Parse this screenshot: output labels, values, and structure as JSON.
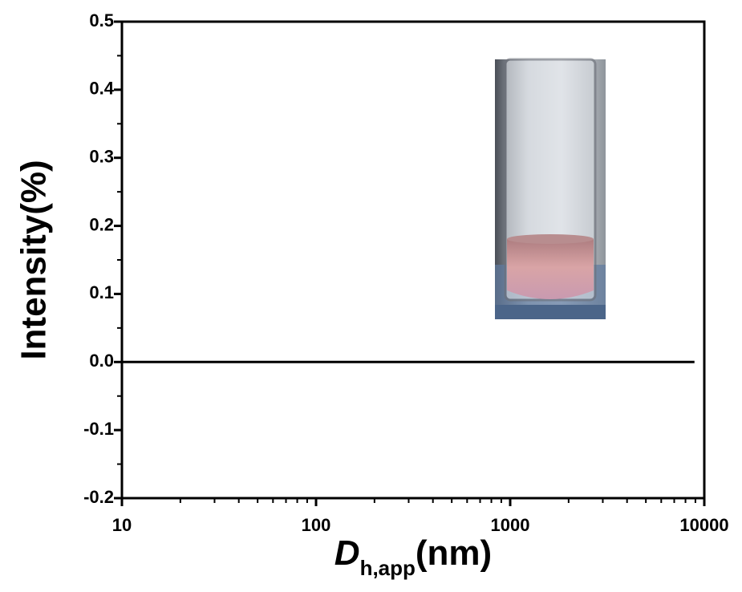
{
  "chart_data": {
    "type": "line",
    "ylabel": "Intensity(%)",
    "xlabel": {
      "symbol": "D",
      "subscript": "h,app",
      "unit": "(nm)"
    },
    "x": [
      10,
      8900
    ],
    "series": [
      {
        "color": "#000000",
        "values": [
          0,
          0
        ]
      }
    ],
    "xscale": "log",
    "xlim": [
      10,
      10000
    ],
    "xticks": [
      10,
      100,
      1000,
      10000
    ],
    "xminorticks": [
      20,
      30,
      40,
      50,
      60,
      70,
      80,
      90,
      200,
      300,
      400,
      500,
      600,
      700,
      800,
      900,
      2000,
      3000,
      4000,
      5000,
      6000,
      7000,
      8000,
      9000
    ],
    "ylim": [
      -0.2,
      0.5
    ],
    "yticks": [
      -0.2,
      -0.1,
      {
        "value": 0,
        "label": "0.0"
      },
      0.1,
      0.2,
      0.3,
      0.4,
      0.5
    ],
    "yminorticks": [
      -0.15,
      -0.05,
      0.05,
      0.15,
      0.25,
      0.35,
      0.45
    ],
    "grid": false
  }
}
